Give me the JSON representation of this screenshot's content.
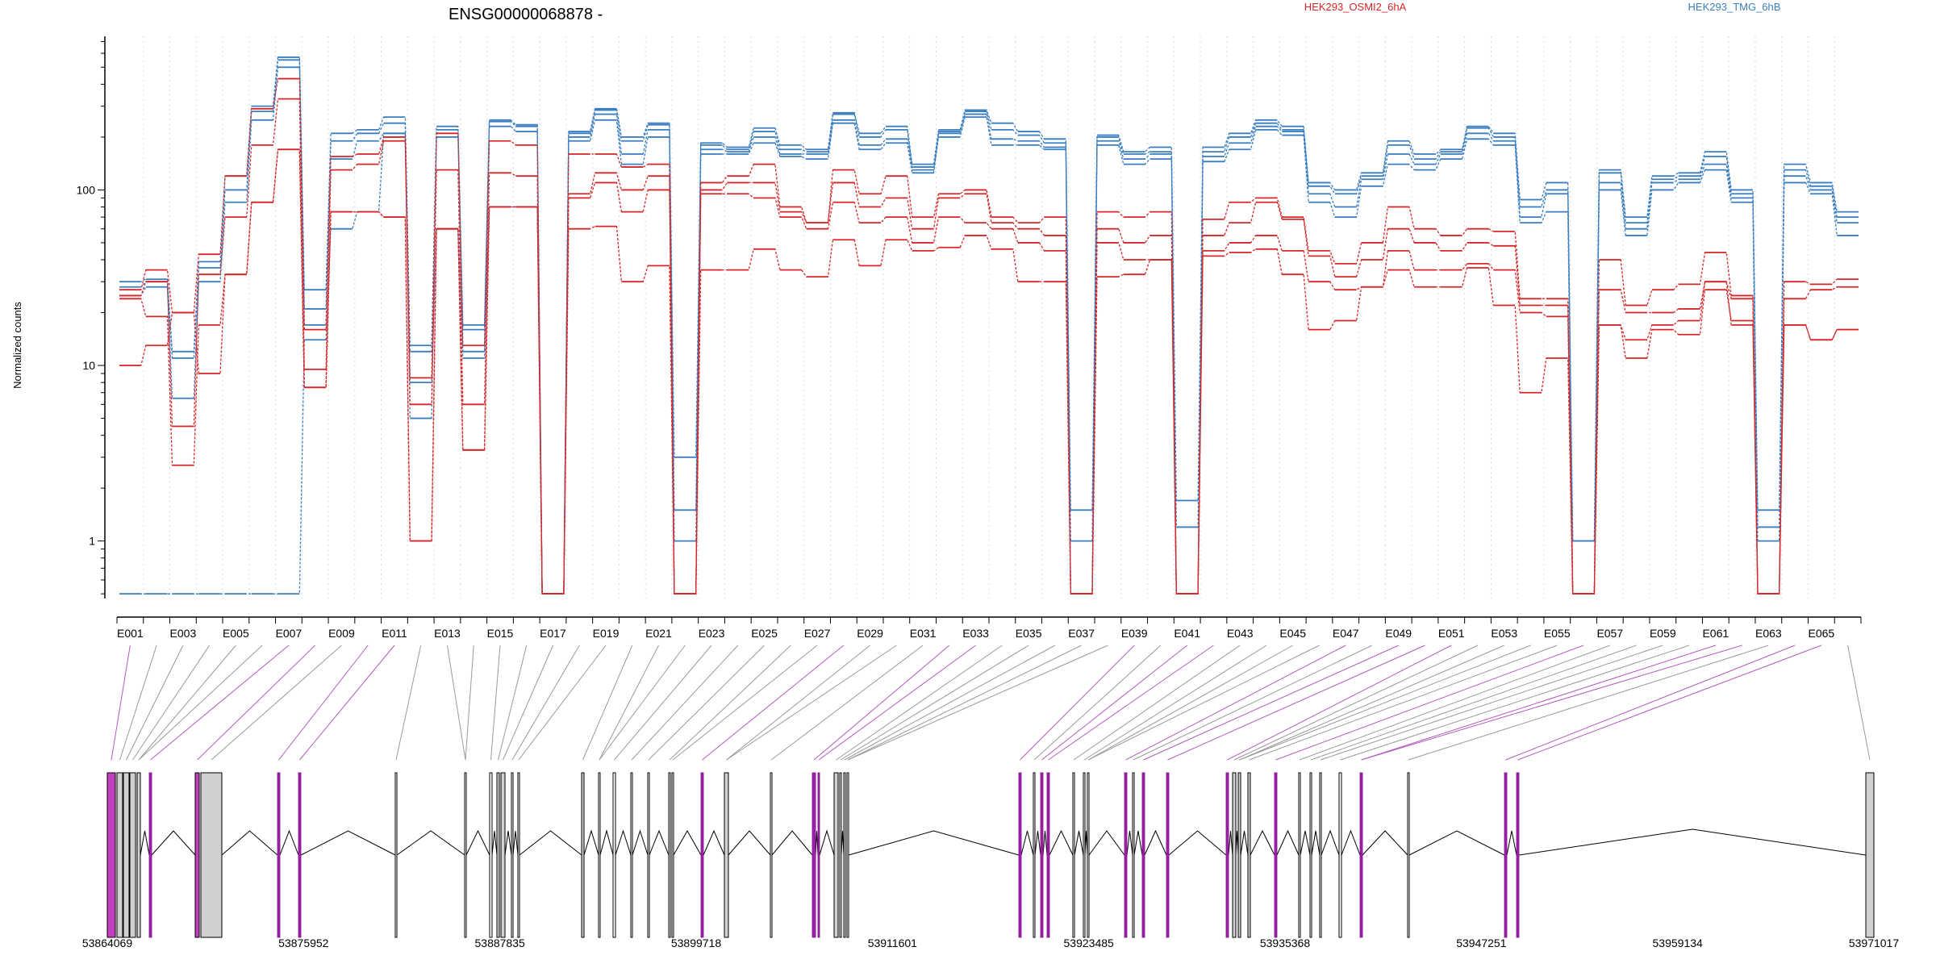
{
  "chart_data": {
    "type": "line",
    "title": "ENSG00000068878 -",
    "xlabel": "",
    "ylabel": "Normalized counts",
    "y_scale": "log",
    "ylim": [
      0.47,
      750
    ],
    "grid": "vertical dotted lines at exon boundaries",
    "legend_placement": "top",
    "y_ticks": [
      {
        "value": 1,
        "label": "1"
      },
      {
        "value": 10,
        "label": "10"
      },
      {
        "value": 100,
        "label": "100"
      }
    ],
    "x_tick_labels": [
      "E001",
      "E003",
      "E005",
      "E007",
      "E009",
      "E011",
      "E013",
      "E015",
      "E017",
      "E019",
      "E021",
      "E023",
      "E025",
      "E027",
      "E029",
      "E031",
      "E033",
      "E035",
      "E037",
      "E039",
      "E041",
      "E043",
      "E045",
      "E047",
      "E049",
      "E051",
      "E053",
      "E055",
      "E057",
      "E059",
      "E061",
      "E063",
      "E065"
    ],
    "exons": [
      "E001",
      "E002",
      "E003",
      "E004",
      "E005",
      "E006",
      "E007",
      "E008",
      "E009",
      "E010",
      "E011",
      "E012",
      "E013",
      "E014",
      "E015",
      "E016",
      "E017",
      "E018",
      "E019",
      "E020",
      "E021",
      "E022",
      "E023",
      "E024",
      "E025",
      "E026",
      "E027",
      "E028",
      "E029",
      "E030",
      "E031",
      "E032",
      "E033",
      "E034",
      "E035",
      "E036",
      "E037",
      "E038",
      "E039",
      "E040",
      "E041",
      "E042",
      "E043",
      "E044",
      "E045",
      "E046",
      "E047",
      "E048",
      "E049",
      "E050",
      "E051",
      "E052",
      "E053",
      "E054",
      "E055",
      "E056",
      "E057",
      "E058",
      "E059",
      "E060",
      "E061",
      "E062",
      "E063",
      "E064",
      "E065",
      "E066"
    ],
    "groups": [
      {
        "name": "HEK293_OSMI2_6hA",
        "color": "#d62728"
      },
      {
        "name": "HEK293_TMG_6hB",
        "color": "#3a7ebf"
      }
    ],
    "series": [
      {
        "group": 1,
        "values": [
          30,
          31,
          12,
          39,
          120,
          300,
          570,
          27,
          210,
          220,
          260,
          13,
          230,
          17,
          250,
          235,
          0.5,
          215,
          290,
          200,
          240,
          3.0,
          185,
          175,
          225,
          180,
          170,
          275,
          210,
          230,
          140,
          220,
          285,
          240,
          215,
          195,
          1.5,
          205,
          165,
          175,
          1.7,
          175,
          210,
          250,
          230,
          110,
          100,
          125,
          190,
          160,
          170,
          230,
          210,
          88,
          110,
          1.0,
          130,
          70,
          120,
          125,
          165,
          100,
          1.5,
          140,
          110,
          75
        ]
      },
      {
        "group": 1,
        "values": [
          28,
          30,
          11,
          36,
          100,
          280,
          550,
          21,
          190,
          210,
          240,
          12,
          220,
          16,
          245,
          230,
          0.5,
          210,
          285,
          190,
          235,
          1.5,
          180,
          170,
          215,
          170,
          165,
          270,
          200,
          220,
          135,
          215,
          280,
          220,
          205,
          185,
          1.0,
          200,
          160,
          165,
          1.2,
          165,
          200,
          240,
          220,
          105,
          95,
          120,
          180,
          150,
          165,
          225,
          200,
          80,
          100,
          1.0,
          125,
          65,
          115,
          120,
          155,
          95,
          1.2,
          130,
          105,
          70
        ]
      },
      {
        "group": 1,
        "values": [
          25,
          28,
          6.5,
          30,
          85,
          250,
          500,
          17,
          150,
          190,
          210,
          5,
          200,
          12,
          230,
          215,
          0.5,
          200,
          270,
          160,
          220,
          1.0,
          170,
          165,
          200,
          160,
          160,
          250,
          180,
          195,
          130,
          210,
          270,
          195,
          190,
          175,
          0.5,
          190,
          150,
          160,
          0.5,
          155,
          185,
          230,
          215,
          95,
          80,
          115,
          160,
          140,
          160,
          210,
          190,
          70,
          95,
          0.5,
          110,
          60,
          110,
          115,
          140,
          90,
          1.0,
          120,
          100,
          65
        ]
      },
      {
        "group": 1,
        "values": [
          0.5,
          0.5,
          0.5,
          0.5,
          0.5,
          0.5,
          0.5,
          14,
          60,
          75,
          210,
          8,
          60,
          11,
          80,
          80,
          0.5,
          190,
          250,
          140,
          200,
          0.5,
          160,
          160,
          185,
          155,
          150,
          240,
          170,
          185,
          125,
          200,
          260,
          180,
          180,
          170,
          0.5,
          180,
          140,
          150,
          0.5,
          145,
          170,
          220,
          205,
          85,
          70,
          105,
          140,
          130,
          150,
          195,
          180,
          65,
          75,
          0.5,
          100,
          55,
          100,
          110,
          130,
          85,
          0.5,
          110,
          95,
          55
        ]
      },
      {
        "group": 0,
        "values": [
          27,
          35,
          20,
          43,
          120,
          290,
          430,
          16,
          155,
          160,
          200,
          8.5,
          210,
          13,
          190,
          180,
          0.5,
          160,
          160,
          135,
          140,
          0.5,
          110,
          120,
          140,
          80,
          65,
          130,
          95,
          120,
          70,
          95,
          100,
          70,
          65,
          70,
          0.5,
          75,
          70,
          75,
          0.5,
          68,
          85,
          90,
          70,
          45,
          38,
          50,
          80,
          60,
          55,
          60,
          58,
          24,
          24,
          0.5,
          40,
          22,
          27,
          29,
          44,
          25,
          0.5,
          30,
          29,
          31
        ]
      },
      {
        "group": 0,
        "values": [
          25,
          30,
          4.5,
          33,
          70,
          180,
          330,
          9.5,
          130,
          140,
          190,
          6,
          130,
          6,
          125,
          120,
          0.5,
          95,
          125,
          100,
          120,
          0.5,
          100,
          110,
          110,
          75,
          65,
          110,
          80,
          90,
          60,
          90,
          95,
          65,
          60,
          55,
          0.5,
          60,
          50,
          55,
          0.5,
          55,
          65,
          85,
          68,
          42,
          32,
          40,
          60,
          50,
          45,
          50,
          48,
          22,
          22,
          0.5,
          27,
          20,
          20,
          21,
          30,
          24,
          0.5,
          24,
          27,
          28
        ]
      },
      {
        "group": 0,
        "values": [
          24,
          19,
          2.7,
          17,
          33,
          85,
          170,
          7.5,
          75,
          75,
          70,
          1.0,
          60,
          3.3,
          80,
          80,
          0.5,
          90,
          110,
          75,
          100,
          0.5,
          95,
          95,
          90,
          70,
          60,
          85,
          65,
          70,
          50,
          70,
          65,
          60,
          50,
          45,
          0.5,
          50,
          40,
          40,
          0.5,
          45,
          50,
          55,
          45,
          30,
          27,
          28,
          45,
          35,
          35,
          38,
          35,
          20,
          19,
          0.5,
          17,
          14,
          17,
          18,
          30,
          17,
          0.5,
          17,
          14,
          16
        ]
      },
      {
        "group": 0,
        "values": [
          10,
          13,
          20,
          9.0,
          33,
          85,
          170,
          7.5,
          75,
          75,
          70,
          1.0,
          60,
          3.3,
          80,
          80,
          0.5,
          60,
          62,
          30,
          37,
          0.5,
          35,
          35,
          46,
          35,
          32,
          52,
          37,
          52,
          45,
          47,
          55,
          46,
          30,
          30,
          0.5,
          32,
          33,
          40,
          0.5,
          42,
          44,
          46,
          33,
          16,
          18,
          28,
          35,
          28,
          28,
          36,
          22,
          7,
          11,
          0.5,
          17,
          11,
          16,
          15,
          27,
          18,
          0.5,
          17,
          14,
          16
        ]
      }
    ],
    "genomic_axis": {
      "tick_labels": [
        "53864069",
        "53875952",
        "53887835",
        "53899718",
        "53911601",
        "53923485",
        "53935368",
        "53947251",
        "53959134",
        "53971017"
      ],
      "start": 53864069,
      "end": 53971017
    }
  }
}
